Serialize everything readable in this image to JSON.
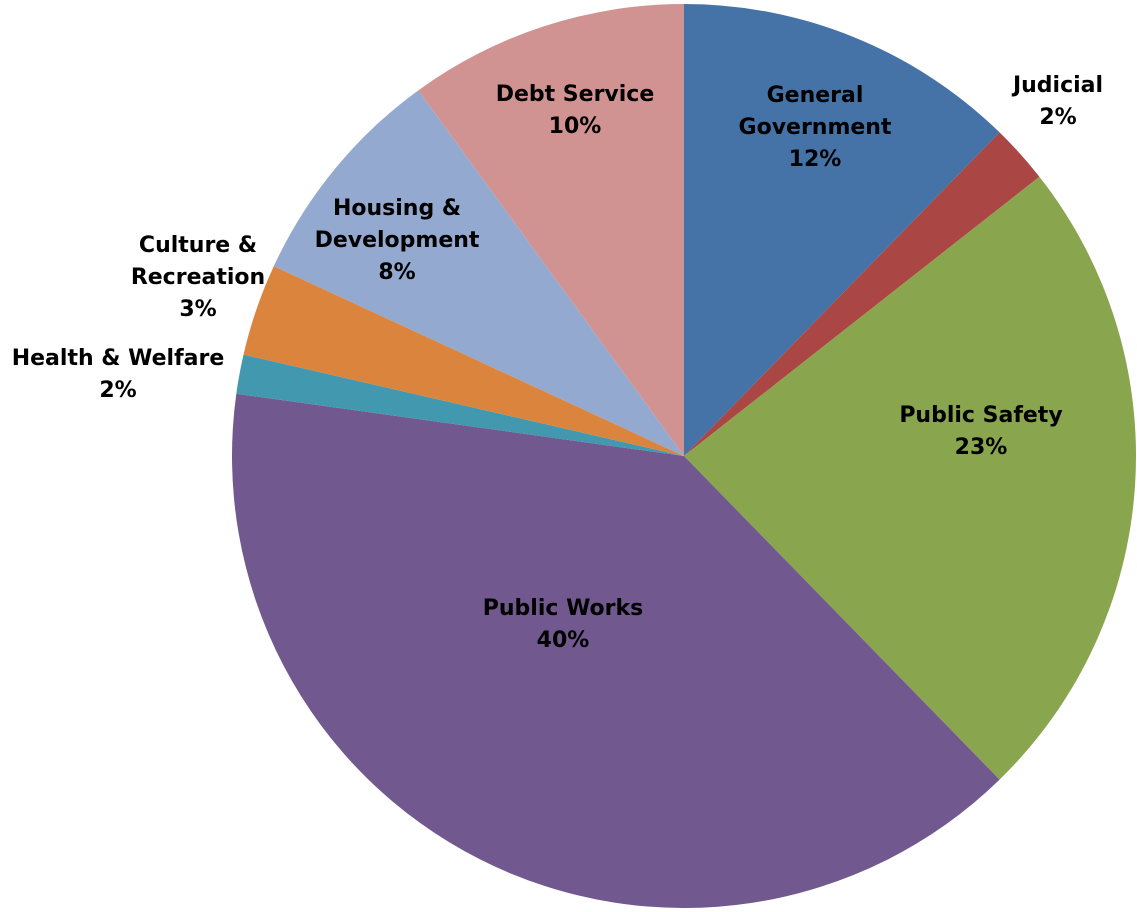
{
  "chart_data": {
    "type": "pie",
    "title": "",
    "slices": [
      {
        "label": "General Government",
        "label_lines": [
          "General",
          "Government"
        ],
        "pct_text": "12%",
        "value": 12.3,
        "color": "#4572A7"
      },
      {
        "label": "Judicial",
        "label_lines": [
          "Judicial"
        ],
        "pct_text": "2%",
        "value": 2.1,
        "color": "#AA4643"
      },
      {
        "label": "Public Safety",
        "label_lines": [
          "Public Safety"
        ],
        "pct_text": "23%",
        "value": 23.3,
        "color": "#89A54E"
      },
      {
        "label": "Public Works",
        "label_lines": [
          "Public Works"
        ],
        "pct_text": "40%",
        "value": 39.5,
        "color": "#71588F"
      },
      {
        "label": "Health & Welfare",
        "label_lines": [
          "Health & Welfare"
        ],
        "pct_text": "2%",
        "value": 1.4,
        "color": "#4198AF"
      },
      {
        "label": "Culture & Recreation",
        "label_lines": [
          "Culture &",
          "Recreation"
        ],
        "pct_text": "3%",
        "value": 3.3,
        "color": "#DB843D"
      },
      {
        "label": "Housing & Development",
        "label_lines": [
          "Housing &",
          "Development"
        ],
        "pct_text": "8%",
        "value": 8.1,
        "color": "#93A9CF"
      },
      {
        "label": "Debt Service",
        "label_lines": [
          "Debt Service"
        ],
        "pct_text": "10%",
        "value": 10.0,
        "color": "#D19392"
      }
    ]
  }
}
